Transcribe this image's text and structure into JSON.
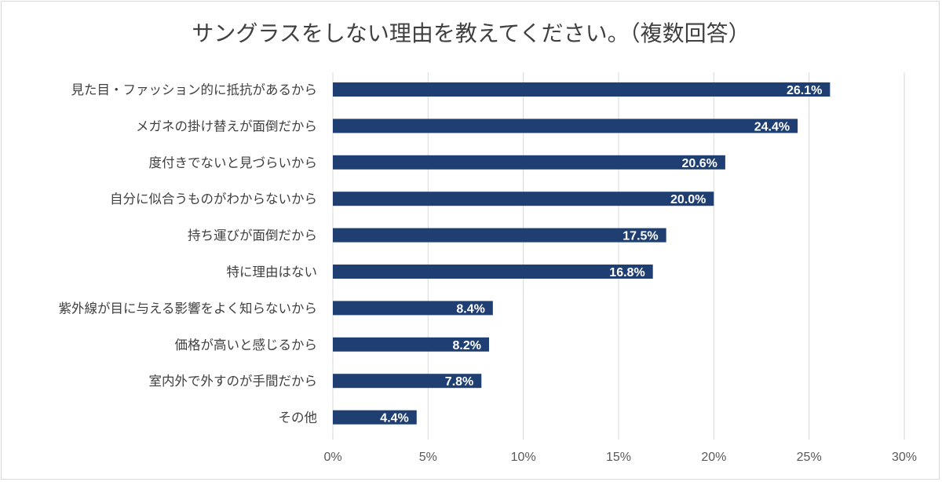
{
  "chart_data": {
    "type": "bar",
    "orientation": "horizontal",
    "title": "サングラスをしない理由を教えてください。（複数回答）",
    "categories": [
      "見た目・ファッション的に抵抗があるから",
      "メガネの掛け替えが面倒だから",
      "度付きでないと見づらいから",
      "自分に似合うものがわからないから",
      "持ち運びが面倒だから",
      "特に理由はない",
      "紫外線が目に与える影響をよく知らないから",
      "価格が高いと感じるから",
      "室内外で外すのが手間だから",
      "その他"
    ],
    "values": [
      26.1,
      24.4,
      20.6,
      20.0,
      17.5,
      16.8,
      8.4,
      8.2,
      7.8,
      4.4
    ],
    "data_labels": [
      "26.1%",
      "24.4%",
      "20.6%",
      "20.0%",
      "17.5%",
      "16.8%",
      "8.4%",
      "8.2%",
      "7.8%",
      "4.4%"
    ],
    "xlim": [
      0,
      30
    ],
    "x_ticks": [
      0,
      5,
      10,
      15,
      20,
      25,
      30
    ],
    "x_tick_labels": [
      "0%",
      "5%",
      "10%",
      "15%",
      "20%",
      "25%",
      "30%"
    ],
    "grid": true,
    "bar_color": "#1f3f73"
  }
}
